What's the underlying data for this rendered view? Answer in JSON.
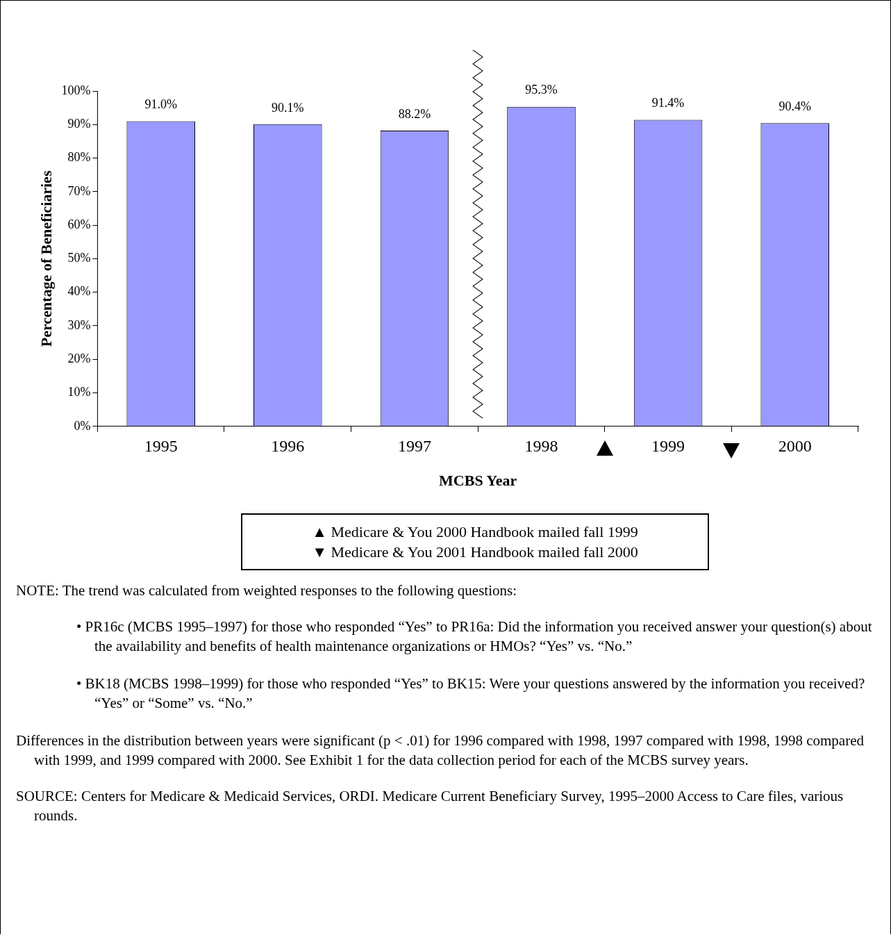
{
  "chart_data": {
    "type": "bar",
    "xlabel": "MCBS Year",
    "ylabel": "Percentage of Beneficiaries",
    "categories": [
      "1995",
      "1996",
      "1997",
      "1998",
      "1999",
      "2000"
    ],
    "values": [
      91.0,
      90.1,
      88.2,
      95.3,
      91.4,
      90.4
    ],
    "value_labels": [
      "91.0%",
      "90.1%",
      "88.2%",
      "95.3%",
      "91.4%",
      "90.4%"
    ],
    "color": "#9999ff",
    "ylim": [
      0,
      100
    ],
    "yticks": [
      {
        "value": 0,
        "label": "0%"
      },
      {
        "value": 10,
        "label": "10%"
      },
      {
        "value": 20,
        "label": "20%"
      },
      {
        "value": 30,
        "label": "30%"
      },
      {
        "value": 40,
        "label": "40%"
      },
      {
        "value": 50,
        "label": "50%"
      },
      {
        "value": 60,
        "label": "60%"
      },
      {
        "value": 70,
        "label": "70%"
      },
      {
        "value": 80,
        "label": "80%"
      },
      {
        "value": 90,
        "label": "90%"
      },
      {
        "value": 100,
        "label": "100%"
      }
    ],
    "grid": false,
    "annotations": [
      "▲ Medicare & You 2000 Handbook mailed fall 1999",
      "▼ Medicare & You 2001 Handbook mailed fall 2000",
      "NOTE:  The trend was calculated from weighted responses to the following questions:",
      "•  PR16c (MCBS 1995–1997) for those who responded “Yes” to PR16a:  Did the information you received answer your question(s) about the availability and benefits of health maintenance organizations or HMOs? “Yes” vs. “No.”",
      "•  BK18 (MCBS 1998–1999) for those who responded “Yes” to BK15:  Were your questions answered by the information you received?  “Yes” or “Some” vs. “No.”",
      "Differences in the distribution between years were significant (p < .01) for 1996 compared with 1998, 1997 compared with 1998, 1998 compared with 1999, and 1999 compared with 2000.  See Exhibit 1 for the data collection period for each of the MCBS survey years.",
      "SOURCE:  Centers for Medicare & Medicaid Services, ORDI.  Medicare Current Beneficiary Survey, 1995–2000 Access to Care files, various rounds."
    ]
  }
}
